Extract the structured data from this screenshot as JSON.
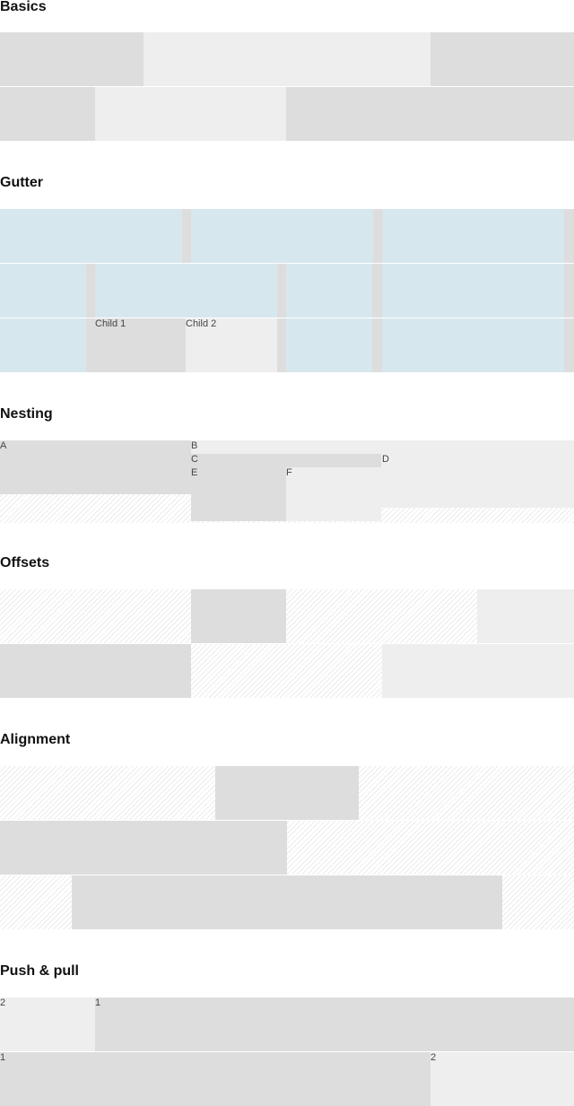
{
  "headings": {
    "basics": "Basics",
    "gutter": "Gutter",
    "nesting": "Nesting",
    "offsets": "Offsets",
    "alignment": "Alignment",
    "push_pull": "Push & pull"
  },
  "gutter": {
    "child1": "Child 1",
    "child2": "Child 2"
  },
  "nesting": {
    "a": "A",
    "b": "B",
    "c": "C",
    "d": "D",
    "e": "E",
    "f": "F"
  },
  "push_pull": {
    "row1": {
      "first": "2",
      "second": "1"
    },
    "row2": {
      "first": "1",
      "second": "2"
    }
  },
  "colors": {
    "dark_cell": "#dddddd",
    "light_cell": "#eeeeee",
    "gutter_cell": "#d7e7ee"
  }
}
